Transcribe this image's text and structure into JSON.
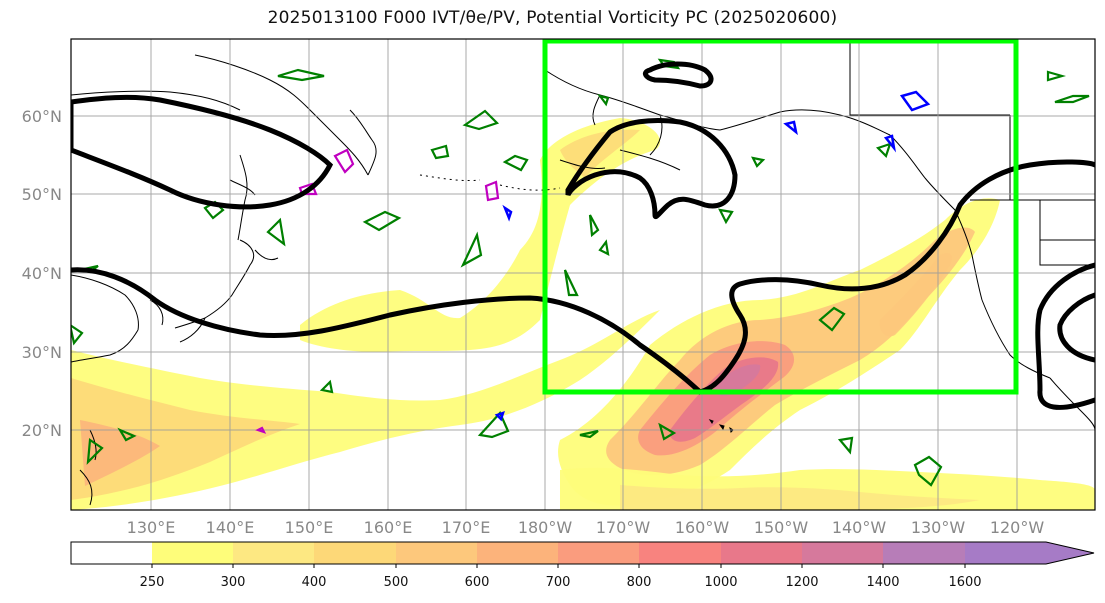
{
  "title": "2025013100 F000 IVT/θe/PV, Potential Vorticity PC (2025020600)",
  "lat_labels": [
    "60°N",
    "50°N",
    "40°N",
    "30°N",
    "20°N"
  ],
  "lon_labels": [
    "130°E",
    "140°E",
    "150°E",
    "160°E",
    "170°E",
    "180°W",
    "170°W",
    "160°W",
    "150°W",
    "140°W",
    "130°W",
    "120°W"
  ],
  "colorbar": {
    "ticks": [
      "250",
      "300",
      "400",
      "500",
      "600",
      "700",
      "800",
      "1000",
      "1200",
      "1400",
      "1600"
    ],
    "colors": [
      "#ffffff",
      "#fefd7a",
      "#fde882",
      "#fdd878",
      "#fdc87c",
      "#fcb37b",
      "#fa9c7e",
      "#f8837f",
      "#e8788a",
      "#d6799c",
      "#b77db8",
      "#a67bc6"
    ]
  },
  "colors": {
    "highlight_box": "#00ff00",
    "pv_contour": "#000000",
    "green_contour": "#008000",
    "magenta_contour": "#c000c0",
    "blue_contour": "#0000ff",
    "gridline": "#9a9a9a"
  }
}
